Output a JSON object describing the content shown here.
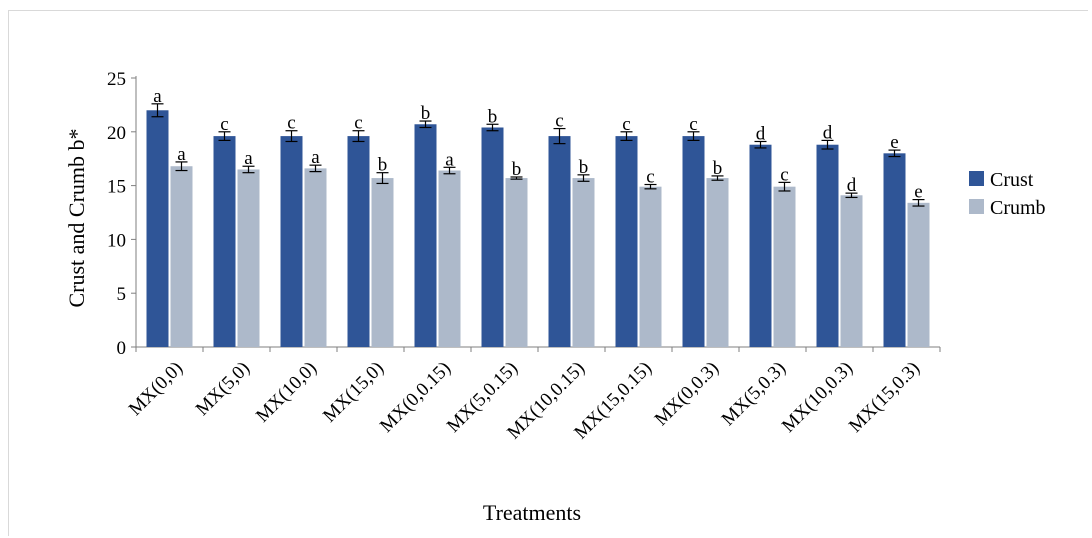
{
  "chart_data": {
    "type": "bar",
    "title": "",
    "xlabel": "Treatments",
    "ylabel": "Crust and Crumb b*",
    "ylim": [
      0,
      25
    ],
    "yticks": [
      "0",
      "5",
      "10",
      "15",
      "20",
      "25"
    ],
    "categories": [
      "MX(0,0)",
      "MX(5,0)",
      "MX(10,0)",
      "MX(15,0)",
      "MX(0,0.15)",
      "MX(5,0.15)",
      "MX(10,0.15)",
      "MX(15,0.15)",
      "MX(0,0.3)",
      "MX(5,0.3)",
      "MX(10,0.3)",
      "MX(15,0.3)"
    ],
    "series": [
      {
        "name": "Crust",
        "color": "#2F5597",
        "values": [
          22.0,
          19.6,
          19.6,
          19.6,
          20.7,
          20.4,
          19.6,
          19.6,
          19.6,
          18.8,
          18.8,
          18.0
        ],
        "errors": [
          0.6,
          0.4,
          0.5,
          0.5,
          0.3,
          0.3,
          0.7,
          0.4,
          0.4,
          0.3,
          0.4,
          0.3
        ],
        "labels": [
          "a",
          "c",
          "c",
          "c",
          "b",
          "b",
          "c",
          "c",
          "c",
          "d",
          "d",
          "e"
        ]
      },
      {
        "name": "Crumb",
        "color": "#ADB9CA",
        "values": [
          16.8,
          16.5,
          16.6,
          15.7,
          16.4,
          15.7,
          15.7,
          14.9,
          15.7,
          14.9,
          14.1,
          13.4
        ],
        "errors": [
          0.4,
          0.3,
          0.3,
          0.5,
          0.3,
          0.1,
          0.3,
          0.2,
          0.2,
          0.4,
          0.2,
          0.3
        ],
        "labels": [
          "a",
          "a",
          "a",
          "b",
          "a",
          "b",
          "b",
          "c",
          "b",
          "c",
          "d",
          "e"
        ]
      }
    ],
    "legend": "right",
    "grid": false
  }
}
